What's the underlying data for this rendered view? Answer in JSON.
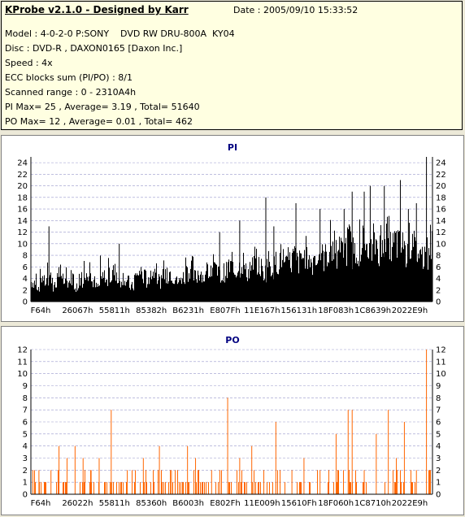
{
  "header": {
    "title": "KProbe v2.1.0 - Designed by Karr",
    "date": "Date : 2005/09/10 15:33:52",
    "lines": [
      "Model : 4-0-2-0 P:SONY    DVD RW DRU-800A  KY04",
      "Disc : DVD-R , DAXON0165 [Daxon Inc.]",
      "Speed : 4x",
      "ECC blocks sum (PI/PO) : 8/1",
      "Scanned range : 0 - 2310A4h",
      "PI Max= 25 , Average= 3.19 , Total= 51640",
      "PO Max= 12 , Average= 0.01 , Total= 462"
    ]
  },
  "chart_data": [
    {
      "type": "bar",
      "title": "PI",
      "color": "#000000",
      "ylim": [
        0,
        25
      ],
      "yticks": [
        0,
        2,
        4,
        6,
        8,
        10,
        12,
        14,
        16,
        18,
        20,
        22,
        24
      ],
      "xticks": [
        "F64h",
        "26067h",
        "55811h",
        "85382h",
        "B6231h",
        "E807Fh",
        "11E167h",
        "156131h",
        "18F083h",
        "1C8639h",
        "2022E9h"
      ],
      "grid": true,
      "values": [
        4,
        3,
        5,
        4,
        5,
        3,
        6,
        4,
        4,
        5,
        3,
        4,
        5,
        6,
        4,
        3,
        5,
        4,
        5,
        6,
        4,
        5,
        4,
        3,
        5,
        6,
        5,
        4,
        6,
        5,
        4,
        5,
        6,
        5,
        4,
        5,
        6,
        7,
        5,
        6,
        5,
        6,
        7,
        6,
        5,
        6,
        7,
        6,
        7,
        8,
        6,
        7,
        8,
        7,
        6,
        8,
        7,
        8,
        9,
        7,
        8,
        9,
        8,
        9,
        10,
        8,
        9,
        10,
        9,
        10,
        11,
        9,
        10,
        11,
        12,
        10,
        11,
        12,
        11,
        10,
        12,
        11,
        12,
        13,
        11,
        12,
        11,
        10,
        12,
        11,
        10,
        9,
        10,
        12
      ],
      "peaks": [
        [
          0.045,
          13
        ],
        [
          0.22,
          10
        ],
        [
          0.47,
          12
        ],
        [
          0.52,
          14
        ],
        [
          0.585,
          18
        ],
        [
          0.605,
          13
        ],
        [
          0.66,
          17
        ],
        [
          0.72,
          16
        ],
        [
          0.78,
          16
        ],
        [
          0.8,
          19
        ],
        [
          0.83,
          19
        ],
        [
          0.845,
          20
        ],
        [
          0.88,
          20
        ],
        [
          0.92,
          21
        ],
        [
          0.94,
          16
        ],
        [
          0.96,
          17
        ],
        [
          0.985,
          25
        ]
      ]
    },
    {
      "type": "bar",
      "title": "PO",
      "color": "#ff6600",
      "ylim": [
        0,
        12
      ],
      "yticks": [
        0,
        1,
        2,
        3,
        4,
        5,
        6,
        7,
        8,
        9,
        10,
        11,
        12
      ],
      "xticks": [
        "F64h",
        "26022h",
        "55811h",
        "85360h",
        "B6003h",
        "E802Fh",
        "11E009h",
        "15610Fh",
        "18F060h",
        "1C8710h",
        "2022E9h"
      ],
      "grid": true,
      "spikes": [
        [
          0.005,
          2
        ],
        [
          0.02,
          2
        ],
        [
          0.05,
          2
        ],
        [
          0.07,
          4
        ],
        [
          0.09,
          3
        ],
        [
          0.11,
          4
        ],
        [
          0.13,
          3
        ],
        [
          0.15,
          2
        ],
        [
          0.17,
          3
        ],
        [
          0.2,
          7
        ],
        [
          0.24,
          2
        ],
        [
          0.28,
          3
        ],
        [
          0.32,
          4
        ],
        [
          0.35,
          2
        ],
        [
          0.39,
          4
        ],
        [
          0.41,
          3
        ],
        [
          0.45,
          2
        ],
        [
          0.49,
          8
        ],
        [
          0.52,
          3
        ],
        [
          0.55,
          4
        ],
        [
          0.58,
          2
        ],
        [
          0.61,
          6
        ],
        [
          0.65,
          2
        ],
        [
          0.68,
          3
        ],
        [
          0.72,
          2
        ],
        [
          0.76,
          5
        ],
        [
          0.79,
          7
        ],
        [
          0.8,
          7
        ],
        [
          0.83,
          2
        ],
        [
          0.86,
          5
        ],
        [
          0.89,
          7
        ],
        [
          0.91,
          3
        ],
        [
          0.93,
          6
        ],
        [
          0.96,
          2
        ],
        [
          0.985,
          12
        ],
        [
          0.993,
          2
        ]
      ]
    }
  ]
}
